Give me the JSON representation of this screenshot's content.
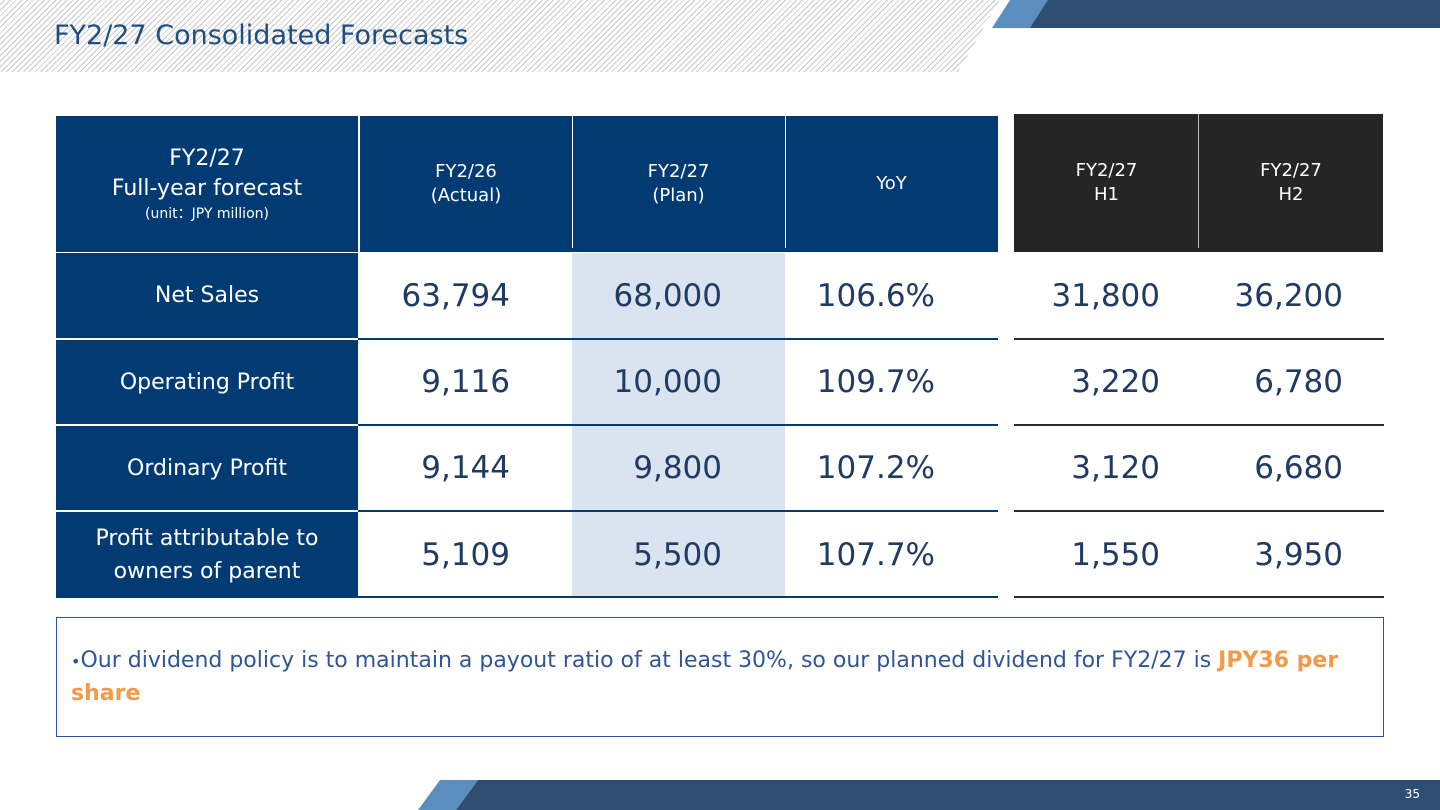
{
  "title": "FY2/27 Consolidated Forecasts",
  "table": {
    "corner": {
      "line1": "FY2/27",
      "line2": "Full-year forecast",
      "line3": "(unit：JPY million)"
    },
    "columns": [
      {
        "l1": "FY2/26",
        "l2": "(Actual)"
      },
      {
        "l1": "FY2/27",
        "l2": "(Plan)"
      },
      {
        "l1": "YoY",
        "l2": ""
      },
      {
        "l1": "FY2/27",
        "l2": "H1"
      },
      {
        "l1": "FY2/27",
        "l2": "H2"
      }
    ],
    "rows": [
      {
        "label": "Net Sales",
        "actual": "63,794",
        "plan": "68,000",
        "yoy": "106.6%",
        "h1": "31,800",
        "h2": "36,200"
      },
      {
        "label": "Operating Profit",
        "actual": "9,116",
        "plan": "10,000",
        "yoy": "109.7%",
        "h1": "3,220",
        "h2": "6,780"
      },
      {
        "label": "Ordinary Profit",
        "actual": "9,144",
        "plan": "9,800",
        "yoy": "107.2%",
        "h1": "3,120",
        "h2": "6,680"
      },
      {
        "label": "Profit attributable to owners of parent",
        "actual": "5,109",
        "plan": "5,500",
        "yoy": "107.7%",
        "h1": "1,550",
        "h2": "3,950"
      }
    ]
  },
  "note": {
    "bullet": "•",
    "text": "Our dividend policy is to maintain a payout ratio of at least 30%, so our planned dividend for FY2/27 is ",
    "highlight": "JPY36 per share"
  },
  "page_number": "35",
  "colors": {
    "navy": "#023b73",
    "black_header": "#252525",
    "plan_highlight": "#dae3f0",
    "accent_orange": "#f19a4a"
  }
}
